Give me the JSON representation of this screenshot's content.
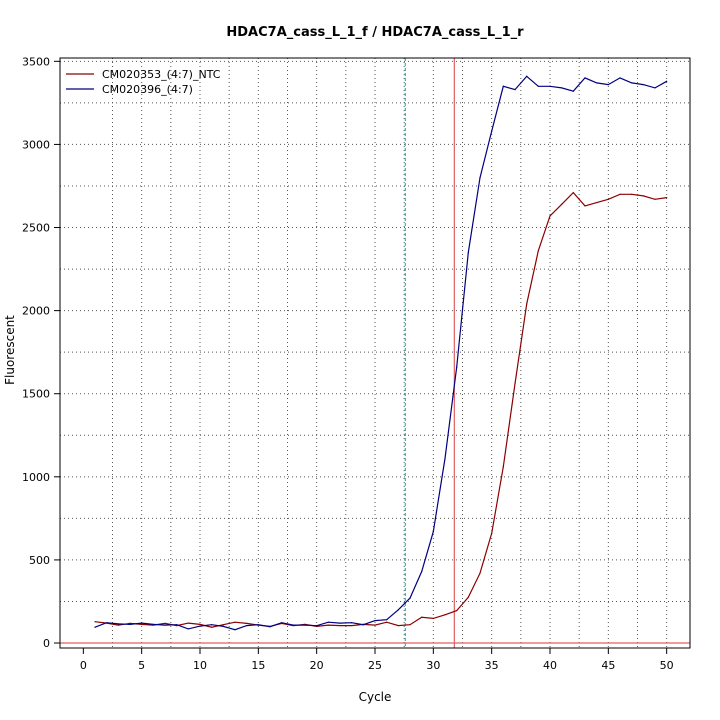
{
  "chart_data": {
    "type": "line",
    "title": "HDAC7A_cass_L_1_f / HDAC7A_cass_L_1_r",
    "xlabel": "Cycle",
    "ylabel": "Fluorescent",
    "xlim": [
      -2,
      52
    ],
    "ylim": [
      -30,
      3520
    ],
    "xticks": [
      0,
      5,
      10,
      15,
      20,
      25,
      30,
      35,
      40,
      45,
      50
    ],
    "yticks": [
      0,
      500,
      1000,
      1500,
      2000,
      2500,
      3000,
      3500
    ],
    "grid": true,
    "legend_position": "top-left",
    "threshold_line": {
      "y": 0,
      "color": "#e06060"
    },
    "vertical_lines": [
      {
        "x": 27.6,
        "color": "#00cccc",
        "style": "dashed"
      },
      {
        "x": 31.8,
        "color": "#e06060",
        "style": "solid"
      }
    ],
    "series": [
      {
        "name": "CM020353_(4:7)_NTC",
        "color": "#8b0000",
        "x": [
          1,
          2,
          3,
          4,
          5,
          6,
          7,
          8,
          9,
          10,
          11,
          12,
          13,
          14,
          15,
          16,
          17,
          18,
          19,
          20,
          21,
          22,
          23,
          24,
          25,
          26,
          27,
          28,
          29,
          30,
          31,
          32,
          33,
          34,
          35,
          36,
          37,
          38,
          39,
          40,
          41,
          42,
          43,
          44,
          45,
          46,
          47,
          48,
          49,
          50
        ],
        "values": [
          128,
          120,
          108,
          118,
          112,
          108,
          118,
          105,
          120,
          112,
          95,
          110,
          125,
          118,
          108,
          100,
          118,
          105,
          112,
          100,
          108,
          105,
          105,
          112,
          108,
          125,
          105,
          110,
          155,
          148,
          170,
          195,
          275,
          420,
          660,
          1060,
          1560,
          2040,
          2360,
          2570,
          2640,
          2710,
          2630,
          2650,
          2670,
          2700,
          2700,
          2690,
          2670,
          2680
        ]
      },
      {
        "name": "CM020396_(4:7)",
        "color": "#000080",
        "x": [
          1,
          2,
          3,
          4,
          5,
          6,
          7,
          8,
          9,
          10,
          11,
          12,
          13,
          14,
          15,
          16,
          17,
          18,
          19,
          20,
          21,
          22,
          23,
          24,
          25,
          26,
          27,
          28,
          29,
          30,
          31,
          32,
          33,
          34,
          35,
          36,
          37,
          38,
          39,
          40,
          41,
          42,
          43,
          44,
          45,
          46,
          47,
          48,
          49,
          50
        ],
        "values": [
          95,
          122,
          115,
          112,
          120,
          112,
          108,
          110,
          85,
          102,
          110,
          100,
          80,
          105,
          110,
          98,
          122,
          108,
          108,
          104,
          125,
          120,
          122,
          110,
          135,
          140,
          200,
          270,
          430,
          670,
          1110,
          1660,
          2350,
          2800,
          3080,
          3350,
          3330,
          3410,
          3350,
          3350,
          3340,
          3320,
          3400,
          3370,
          3360,
          3400,
          3370,
          3360,
          3340,
          3380
        ]
      }
    ]
  }
}
